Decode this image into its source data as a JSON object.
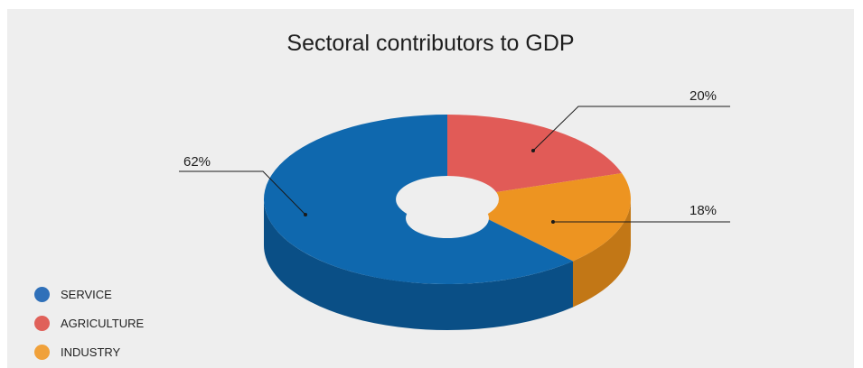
{
  "chart_data": {
    "type": "pie",
    "variant": "3d-donut",
    "title": "Sectoral contributors to GDP",
    "legend_position": "bottom-left",
    "slices": [
      {
        "name": "SERVICE",
        "value": 62,
        "label": "62%",
        "color": "#0f68ae",
        "side_color": "#0a4f86"
      },
      {
        "name": "AGRICULTURE",
        "value": 20,
        "label": "20%",
        "color": "#e15b57",
        "side_color": "#b04440"
      },
      {
        "name": "INDUSTRY",
        "value": 18,
        "label": "18%",
        "color": "#ed9421",
        "side_color": "#c27716"
      }
    ]
  },
  "legend": [
    {
      "label": "SERVICE",
      "color": "#2f70b9"
    },
    {
      "label": "AGRICULTURE",
      "color": "#e0615a"
    },
    {
      "label": "INDUSTRY",
      "color": "#f0a13a"
    }
  ]
}
